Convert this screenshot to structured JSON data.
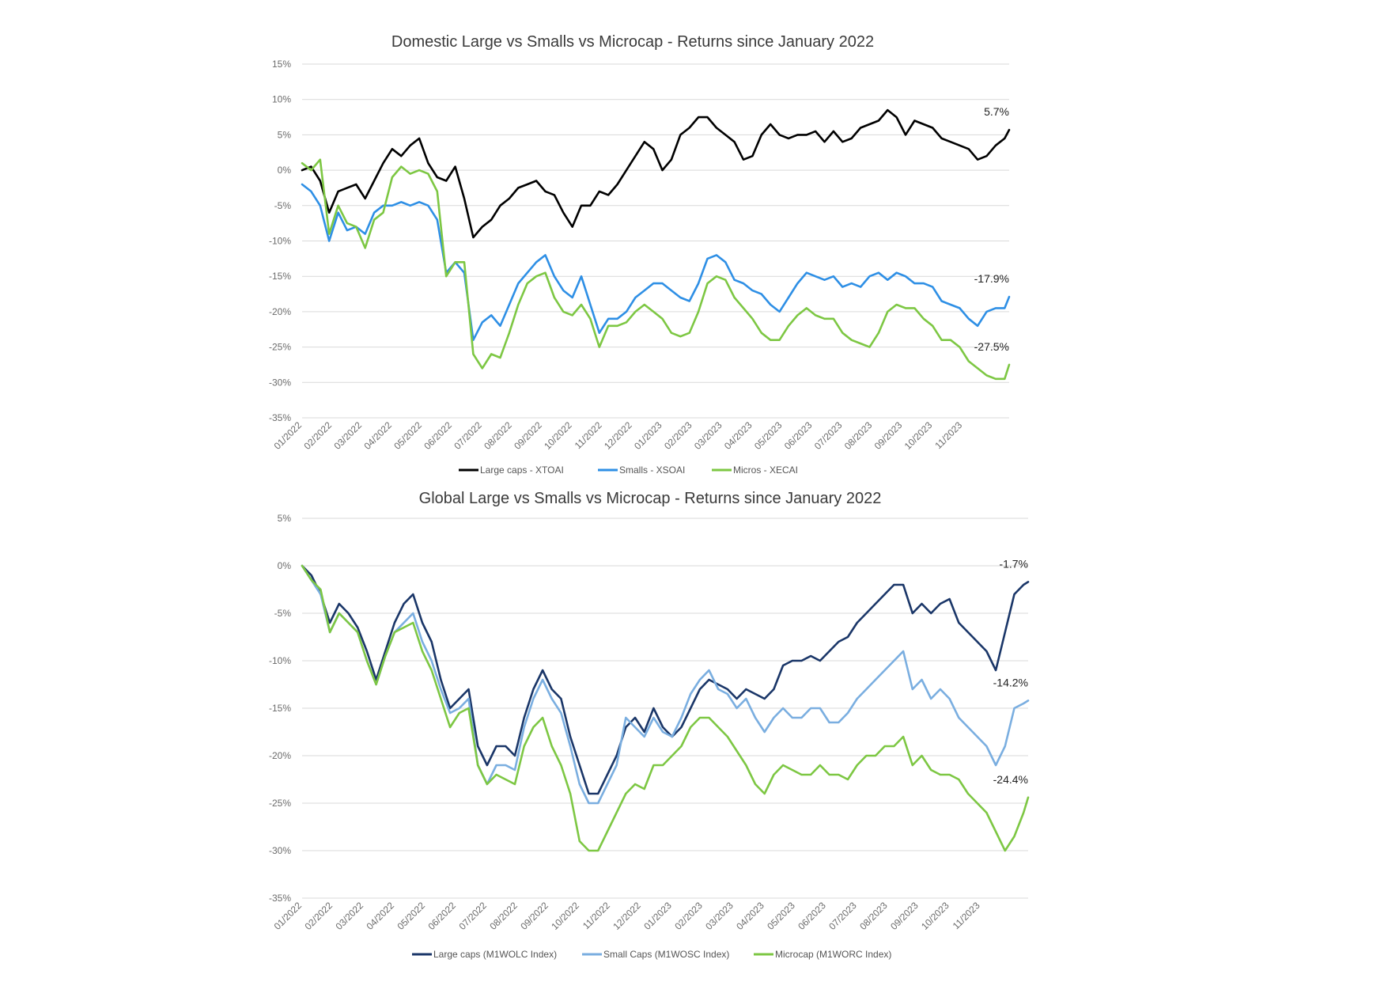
{
  "chart_data": [
    {
      "type": "line",
      "title": "Domestic Large vs Smalls vs Microcap - Returns since January 2022",
      "xlabel": "",
      "ylabel": "",
      "ylim": [
        -35,
        15
      ],
      "yticks": [
        "15%",
        "10%",
        "5%",
        "0%",
        "-5%",
        "-10%",
        "-15%",
        "-20%",
        "-25%",
        "-30%",
        "-35%"
      ],
      "ytick_values": [
        15,
        10,
        5,
        0,
        -5,
        -10,
        -15,
        -20,
        -25,
        -30,
        -35
      ],
      "categories": [
        "01/2022",
        "02/2022",
        "03/2022",
        "04/2022",
        "05/2022",
        "06/2022",
        "07/2022",
        "08/2022",
        "09/2022",
        "10/2022",
        "11/2022",
        "12/2022",
        "01/2023",
        "02/2023",
        "03/2023",
        "04/2023",
        "05/2023",
        "06/2023",
        "07/2023",
        "08/2023",
        "09/2023",
        "10/2023",
        "11/2023"
      ],
      "x_end": 23.55,
      "grid": true,
      "legend_position": "bottom",
      "series": [
        {
          "name": "Large caps - XTOAI",
          "color": "#000000",
          "end_label": "5.7%",
          "x": [
            0,
            0.3,
            0.6,
            0.9,
            1.2,
            1.5,
            1.8,
            2.1,
            2.4,
            2.7,
            3.0,
            3.3,
            3.6,
            3.9,
            4.2,
            4.5,
            4.8,
            5.1,
            5.4,
            5.7,
            6.0,
            6.3,
            6.6,
            6.9,
            7.2,
            7.5,
            7.8,
            8.1,
            8.4,
            8.7,
            9.0,
            9.3,
            9.6,
            9.9,
            10.2,
            10.5,
            10.8,
            11.1,
            11.4,
            11.7,
            12.0,
            12.3,
            12.6,
            12.9,
            13.2,
            13.5,
            13.8,
            14.1,
            14.4,
            14.7,
            15.0,
            15.3,
            15.6,
            15.9,
            16.2,
            16.5,
            16.8,
            17.1,
            17.4,
            17.7,
            18.0,
            18.3,
            18.6,
            18.9,
            19.2,
            19.5,
            19.8,
            20.1,
            20.4,
            20.7,
            21.0,
            21.3,
            21.6,
            21.9,
            22.2,
            22.5,
            22.8,
            23.1,
            23.4,
            23.55
          ],
          "values": [
            0,
            0.5,
            -1.5,
            -6,
            -3,
            -2.5,
            -2,
            -4,
            -1.5,
            1,
            3,
            2,
            3.5,
            4.5,
            1,
            -1,
            -1.5,
            0.5,
            -4,
            -9.5,
            -8,
            -7,
            -5,
            -4,
            -2.5,
            -2,
            -1.5,
            -3,
            -3.5,
            -6,
            -8,
            -5,
            -5,
            -3,
            -3.5,
            -2,
            0,
            2,
            4,
            3,
            0,
            1.5,
            5,
            6,
            7.5,
            7.5,
            6,
            5,
            4,
            1.5,
            2,
            5,
            6.5,
            5,
            4.5,
            5,
            5,
            5.5,
            4,
            5.5,
            4,
            4.5,
            6,
            6.5,
            7,
            8.5,
            7.5,
            5,
            7,
            6.5,
            6,
            4.5,
            4,
            3.5,
            3,
            1.5,
            2,
            3.5,
            4.5,
            5.7
          ]
        },
        {
          "name": "Smalls - XSOAI",
          "color": "#2e8fe5",
          "end_label": "-17.9%",
          "x": [
            0,
            0.3,
            0.6,
            0.9,
            1.2,
            1.5,
            1.8,
            2.1,
            2.4,
            2.7,
            3.0,
            3.3,
            3.6,
            3.9,
            4.2,
            4.5,
            4.8,
            5.1,
            5.4,
            5.7,
            6.0,
            6.3,
            6.6,
            6.9,
            7.2,
            7.5,
            7.8,
            8.1,
            8.4,
            8.7,
            9.0,
            9.3,
            9.6,
            9.9,
            10.2,
            10.5,
            10.8,
            11.1,
            11.4,
            11.7,
            12.0,
            12.3,
            12.6,
            12.9,
            13.2,
            13.5,
            13.8,
            14.1,
            14.4,
            14.7,
            15.0,
            15.3,
            15.6,
            15.9,
            16.2,
            16.5,
            16.8,
            17.1,
            17.4,
            17.7,
            18.0,
            18.3,
            18.6,
            18.9,
            19.2,
            19.5,
            19.8,
            20.1,
            20.4,
            20.7,
            21.0,
            21.3,
            21.6,
            21.9,
            22.2,
            22.5,
            22.8,
            23.1,
            23.4,
            23.55
          ],
          "values": [
            -2,
            -3,
            -5,
            -10,
            -6,
            -8.5,
            -8,
            -9,
            -6,
            -5,
            -5,
            -4.5,
            -5,
            -4.5,
            -5,
            -7,
            -14.5,
            -13,
            -14.5,
            -24,
            -21.5,
            -20.5,
            -22,
            -19,
            -16,
            -14.5,
            -13,
            -12,
            -15,
            -17,
            -18,
            -15,
            -19,
            -23,
            -21,
            -21,
            -20,
            -18,
            -17,
            -16,
            -16,
            -17,
            -18,
            -18.5,
            -16,
            -12.5,
            -12,
            -13,
            -15.5,
            -16,
            -17,
            -17.5,
            -19,
            -20,
            -18,
            -16,
            -14.5,
            -15,
            -15.5,
            -15,
            -16.5,
            -16,
            -16.5,
            -15,
            -14.5,
            -15.5,
            -14.5,
            -15,
            -16,
            -16,
            -16.5,
            -18.5,
            -19,
            -19.5,
            -21,
            -22,
            -20,
            -19.5,
            -19.5,
            -17.9
          ]
        },
        {
          "name": "Micros - XECAI",
          "color": "#7dc743",
          "end_label": "-27.5%",
          "x": [
            0,
            0.3,
            0.6,
            0.9,
            1.2,
            1.5,
            1.8,
            2.1,
            2.4,
            2.7,
            3.0,
            3.3,
            3.6,
            3.9,
            4.2,
            4.5,
            4.8,
            5.1,
            5.4,
            5.7,
            6.0,
            6.3,
            6.6,
            6.9,
            7.2,
            7.5,
            7.8,
            8.1,
            8.4,
            8.7,
            9.0,
            9.3,
            9.6,
            9.9,
            10.2,
            10.5,
            10.8,
            11.1,
            11.4,
            11.7,
            12.0,
            12.3,
            12.6,
            12.9,
            13.2,
            13.5,
            13.8,
            14.1,
            14.4,
            14.7,
            15.0,
            15.3,
            15.6,
            15.9,
            16.2,
            16.5,
            16.8,
            17.1,
            17.4,
            17.7,
            18.0,
            18.3,
            18.6,
            18.9,
            19.2,
            19.5,
            19.8,
            20.1,
            20.4,
            20.7,
            21.0,
            21.3,
            21.6,
            21.9,
            22.2,
            22.5,
            22.8,
            23.1,
            23.4,
            23.55
          ],
          "values": [
            1,
            0,
            1.5,
            -9,
            -5,
            -7.5,
            -8,
            -11,
            -7,
            -6,
            -1,
            0.5,
            -0.5,
            0,
            -0.5,
            -3,
            -15,
            -13,
            -13,
            -26,
            -28,
            -26,
            -26.5,
            -23,
            -19,
            -16,
            -15,
            -14.5,
            -18,
            -20,
            -20.5,
            -19,
            -21,
            -25,
            -22,
            -22,
            -21.5,
            -20,
            -19,
            -20,
            -21,
            -23,
            -23.5,
            -23,
            -20,
            -16,
            -15,
            -15.5,
            -18,
            -19.5,
            -21,
            -23,
            -24,
            -24,
            -22,
            -20.5,
            -19.5,
            -20.5,
            -21,
            -21,
            -23,
            -24,
            -24.5,
            -25,
            -23,
            -20,
            -19,
            -19.5,
            -19.5,
            -21,
            -22,
            -24,
            -24,
            -25,
            -27,
            -28,
            -29,
            -29.5,
            -29.5,
            -27.5
          ]
        }
      ]
    },
    {
      "type": "line",
      "title": "Global Large vs Smalls vs Microcap - Returns since January 2022",
      "xlabel": "",
      "ylabel": "",
      "ylim": [
        -35,
        5
      ],
      "yticks": [
        "5%",
        "0%",
        "-5%",
        "-10%",
        "-15%",
        "-20%",
        "-25%",
        "-30%",
        "-35%"
      ],
      "ytick_values": [
        5,
        0,
        -5,
        -10,
        -15,
        -20,
        -25,
        -30,
        -35
      ],
      "categories": [
        "01/2022",
        "02/2022",
        "03/2022",
        "04/2022",
        "05/2022",
        "06/2022",
        "07/2022",
        "08/2022",
        "09/2022",
        "10/2022",
        "11/2022",
        "12/2022",
        "01/2023",
        "02/2023",
        "03/2023",
        "04/2023",
        "05/2023",
        "06/2023",
        "07/2023",
        "08/2023",
        "09/2023",
        "10/2023",
        "11/2023"
      ],
      "x_end": 23.55,
      "grid": true,
      "legend_position": "bottom",
      "series": [
        {
          "name": "Large caps (M1WOLC Index)",
          "color": "#1a3668",
          "end_label": "-1.7%",
          "x": [
            0,
            0.3,
            0.6,
            0.9,
            1.2,
            1.5,
            1.8,
            2.1,
            2.4,
            2.7,
            3.0,
            3.3,
            3.6,
            3.9,
            4.2,
            4.5,
            4.8,
            5.1,
            5.4,
            5.7,
            6.0,
            6.3,
            6.6,
            6.9,
            7.2,
            7.5,
            7.8,
            8.1,
            8.4,
            8.7,
            9.0,
            9.3,
            9.6,
            9.9,
            10.2,
            10.5,
            10.8,
            11.1,
            11.4,
            11.7,
            12.0,
            12.3,
            12.6,
            12.9,
            13.2,
            13.5,
            13.8,
            14.1,
            14.4,
            14.7,
            15.0,
            15.3,
            15.6,
            15.9,
            16.2,
            16.5,
            16.8,
            17.1,
            17.4,
            17.7,
            18.0,
            18.3,
            18.6,
            18.9,
            19.2,
            19.5,
            19.8,
            20.1,
            20.4,
            20.7,
            21.0,
            21.3,
            21.6,
            21.9,
            22.2,
            22.5,
            22.8,
            23.1,
            23.4,
            23.55
          ],
          "values": [
            0,
            -1,
            -3,
            -6,
            -4,
            -5,
            -6.5,
            -9,
            -12,
            -9,
            -6,
            -4,
            -3,
            -6,
            -8,
            -12,
            -15,
            -14,
            -13,
            -19,
            -21,
            -19,
            -19,
            -20,
            -16,
            -13,
            -11,
            -13,
            -14,
            -18,
            -21,
            -24,
            -24,
            -22,
            -20,
            -17,
            -16,
            -17.5,
            -15,
            -17,
            -18,
            -17,
            -15,
            -13,
            -12,
            -12.5,
            -13,
            -14,
            -13,
            -13.5,
            -14,
            -13,
            -10.5,
            -10,
            -10,
            -9.5,
            -10,
            -9,
            -8,
            -7.5,
            -6,
            -5,
            -4,
            -3,
            -2,
            -2,
            -5,
            -4,
            -5,
            -4,
            -3.5,
            -6,
            -7,
            -8,
            -9,
            -11,
            -7,
            -3,
            -2,
            -1.7
          ]
        },
        {
          "name": "Small Caps (M1WOSC Index)",
          "color": "#7aaee0",
          "end_label": "-14.2%",
          "x": [
            0,
            0.3,
            0.6,
            0.9,
            1.2,
            1.5,
            1.8,
            2.1,
            2.4,
            2.7,
            3.0,
            3.3,
            3.6,
            3.9,
            4.2,
            4.5,
            4.8,
            5.1,
            5.4,
            5.7,
            6.0,
            6.3,
            6.6,
            6.9,
            7.2,
            7.5,
            7.8,
            8.1,
            8.4,
            8.7,
            9.0,
            9.3,
            9.6,
            9.9,
            10.2,
            10.5,
            10.8,
            11.1,
            11.4,
            11.7,
            12.0,
            12.3,
            12.6,
            12.9,
            13.2,
            13.5,
            13.8,
            14.1,
            14.4,
            14.7,
            15.0,
            15.3,
            15.6,
            15.9,
            16.2,
            16.5,
            16.8,
            17.1,
            17.4,
            17.7,
            18.0,
            18.3,
            18.6,
            18.9,
            19.2,
            19.5,
            19.8,
            20.1,
            20.4,
            20.7,
            21.0,
            21.3,
            21.6,
            21.9,
            22.2,
            22.5,
            22.8,
            23.1,
            23.4,
            23.55
          ],
          "values": [
            0,
            -1.5,
            -3,
            -7,
            -5,
            -6,
            -7,
            -10,
            -12.5,
            -9.5,
            -7,
            -6,
            -5,
            -8,
            -10,
            -13,
            -15.5,
            -15,
            -14,
            -21,
            -23,
            -21,
            -21,
            -21.5,
            -17,
            -14,
            -12,
            -14,
            -15.5,
            -19,
            -23,
            -25,
            -25,
            -23,
            -21,
            -16,
            -17,
            -18,
            -16,
            -17.5,
            -18,
            -16,
            -13.5,
            -12,
            -11,
            -13,
            -13.5,
            -15,
            -14,
            -16,
            -17.5,
            -16,
            -15,
            -16,
            -16,
            -15,
            -15,
            -16.5,
            -16.5,
            -15.5,
            -14,
            -13,
            -12,
            -11,
            -10,
            -9,
            -13,
            -12,
            -14,
            -13,
            -14,
            -16,
            -17,
            -18,
            -19,
            -21,
            -19,
            -15,
            -14.5,
            -14.2
          ]
        },
        {
          "name": "Microcap (M1WORC Index)",
          "color": "#7dc743",
          "end_label": "-24.4%",
          "x": [
            0,
            0.3,
            0.6,
            0.9,
            1.2,
            1.5,
            1.8,
            2.1,
            2.4,
            2.7,
            3.0,
            3.3,
            3.6,
            3.9,
            4.2,
            4.5,
            4.8,
            5.1,
            5.4,
            5.7,
            6.0,
            6.3,
            6.6,
            6.9,
            7.2,
            7.5,
            7.8,
            8.1,
            8.4,
            8.7,
            9.0,
            9.3,
            9.6,
            9.9,
            10.2,
            10.5,
            10.8,
            11.1,
            11.4,
            11.7,
            12.0,
            12.3,
            12.6,
            12.9,
            13.2,
            13.5,
            13.8,
            14.1,
            14.4,
            14.7,
            15.0,
            15.3,
            15.6,
            15.9,
            16.2,
            16.5,
            16.8,
            17.1,
            17.4,
            17.7,
            18.0,
            18.3,
            18.6,
            18.9,
            19.2,
            19.5,
            19.8,
            20.1,
            20.4,
            20.7,
            21.0,
            21.3,
            21.6,
            21.9,
            22.2,
            22.5,
            22.8,
            23.1,
            23.4,
            23.55
          ],
          "values": [
            0,
            -1.5,
            -2.5,
            -7,
            -5,
            -6,
            -7,
            -10,
            -12.5,
            -9.5,
            -7,
            -6.5,
            -6,
            -9,
            -11,
            -14,
            -17,
            -15.5,
            -15,
            -21,
            -23,
            -22,
            -22.5,
            -23,
            -19,
            -17,
            -16,
            -19,
            -21,
            -24,
            -29,
            -30,
            -30,
            -28,
            -26,
            -24,
            -23,
            -23.5,
            -21,
            -21,
            -20,
            -19,
            -17,
            -16,
            -16,
            -17,
            -18,
            -19.5,
            -21,
            -23,
            -24,
            -22,
            -21,
            -21.5,
            -22,
            -22,
            -21,
            -22,
            -22,
            -22.5,
            -21,
            -20,
            -20,
            -19,
            -19,
            -18,
            -21,
            -20,
            -21.5,
            -22,
            -22,
            -22.5,
            -24,
            -25,
            -26,
            -28,
            -30,
            -28.5,
            -26,
            -24.4
          ]
        }
      ]
    }
  ]
}
